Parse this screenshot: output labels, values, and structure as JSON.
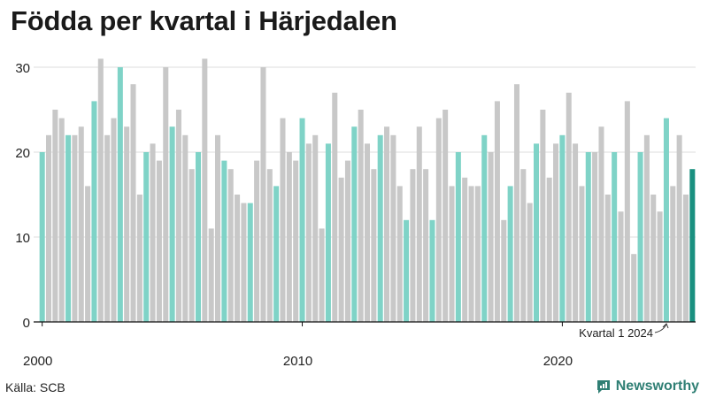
{
  "title": "Födda per kvartal i Härjedalen",
  "source": "Källa: SCB",
  "brand": {
    "name": "Newsworthy",
    "icon": "newsworthy-logo-icon"
  },
  "colors": {
    "q1": "#7fd3c7",
    "other": "#c8c8c8",
    "latest": "#1a9080",
    "grid": "#dddddd",
    "axis": "#111111",
    "brand": "#2f7f74"
  },
  "chart_data": {
    "type": "bar",
    "title": "Födda per kvartal i Härjedalen",
    "xlabel": "",
    "ylabel": "",
    "ylim": [
      0,
      32
    ],
    "yticks": [
      0,
      10,
      20,
      30
    ],
    "xticks": [
      {
        "label": "2000",
        "index": 0
      },
      {
        "label": "2010",
        "index": 40
      },
      {
        "label": "2020",
        "index": 80
      }
    ],
    "start_year": 2000,
    "annotation": "Kvartal 1 2024",
    "legend": "none",
    "values": [
      20,
      22,
      25,
      24,
      22,
      22,
      23,
      16,
      26,
      31,
      22,
      24,
      30,
      23,
      28,
      15,
      20,
      21,
      19,
      30,
      23,
      25,
      22,
      18,
      20,
      31,
      11,
      22,
      19,
      18,
      15,
      14,
      14,
      19,
      30,
      18,
      16,
      24,
      20,
      19,
      24,
      21,
      22,
      11,
      21,
      27,
      17,
      19,
      23,
      25,
      21,
      18,
      22,
      23,
      22,
      16,
      12,
      18,
      23,
      18,
      12,
      24,
      25,
      16,
      20,
      17,
      16,
      16,
      22,
      20,
      26,
      12,
      16,
      28,
      18,
      14,
      21,
      25,
      17,
      21,
      22,
      27,
      21,
      16,
      20,
      20,
      23,
      15,
      20,
      13,
      26,
      8,
      20,
      22,
      15,
      13,
      24,
      16,
      22,
      15,
      18
    ]
  }
}
